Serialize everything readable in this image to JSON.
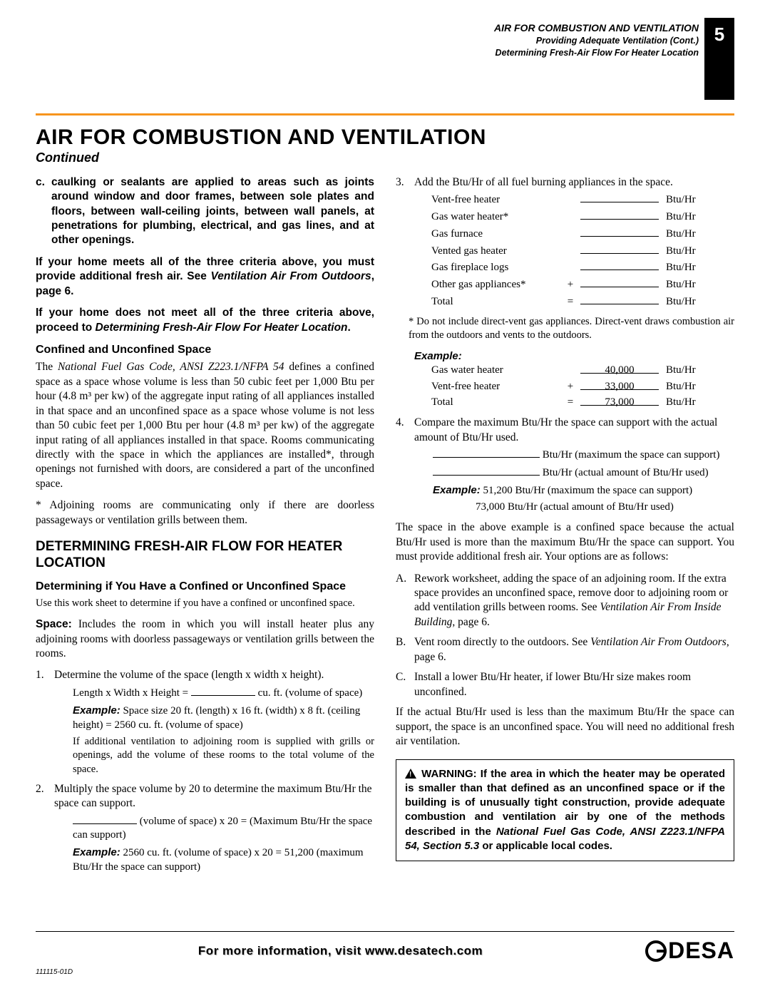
{
  "header": {
    "line1": "AIR FOR COMBUSTION AND VENTILATION",
    "line2": "Providing Adequate Ventilation (Cont.)",
    "line3": "Determining Fresh-Air Flow For Heater Location",
    "page_number": "5"
  },
  "title": "AIR FOR COMBUSTION AND VENTILATION",
  "continued": "Continued",
  "col1": {
    "item_c_marker": "c.",
    "item_c": "caulking or sealants are applied to areas such as joints around window and door frames, between sole plates and floors, between wall-ceiling joints, between wall panels, at penetrations for plumbing, electrical, and gas lines, and at other openings.",
    "p1_a": "If your home meets all of the three criteria above, you must provide additional fresh air. See ",
    "p1_b": "Ventilation Air From Outdoors",
    "p1_c": ", page 6.",
    "p2_a": "If your home does not meet all of the three criteria above, proceed to ",
    "p2_b": "Determining Fresh-Air Flow For Heater Location",
    "p2_c": ".",
    "h3_confined": "Confined and Unconfined Space",
    "confined_a": "The ",
    "confined_code": "National Fuel Gas Code, ANSI Z223.1/NFPA 54",
    "confined_b": " defines a confined space as a space whose volume is less than 50 cubic feet per 1,000 Btu per hour (4.8 m³ per kw) of the aggregate input rating of all appliances installed in that space and an unconfined space as a space whose volume is not less than 50 cubic feet per 1,000 Btu per hour (4.8 m³ per kw) of the aggregate input rating of all appliances installed in that space. Rooms communicating directly with the space in which the appliances are installed*, through openings not furnished with doors, are considered a part of the unconfined space.",
    "confined_note": "* Adjoining rooms are communicating only if there are doorless passageways or ventilation grills between them.",
    "h2_determining": "DETERMINING FRESH-AIR FLOW FOR HEATER LOCATION",
    "h3_determining_sub": "Determining if You Have a Confined or Unconfined Space",
    "worksheet_intro": "Use this work sheet to determine if you have a confined or unconfined space.",
    "space_label": "Space:",
    "space_def": " Includes the room in which you will install heater plus any adjoining rooms with doorless passageways or ventilation grills between the rooms.",
    "step1": "Determine the volume of the space (length x width x height).",
    "step1_formula": "Length x Width x Height = ",
    "step1_unit": " cu. ft. (volume of space)",
    "step1_ex": " Space size 20 ft. (length) x 16 ft. (width) x 8 ft. (ceiling height) = 2560 cu. ft. (volume of space)",
    "step1_note": "If additional ventilation to adjoining room is supplied with grills or openings, add the volume of these rooms to the total volume of the space.",
    "step2": "Multiply the space volume by 20 to determine the maximum Btu/Hr the space can support.",
    "step2_unit": " (volume of space) x 20 = (Maximum Btu/Hr the space can support)",
    "step2_ex": " 2560 cu. ft. (volume of space) x 20 = 51,200 (maximum Btu/Hr the space can support)"
  },
  "col2": {
    "step3": "Add the Btu/Hr of all fuel burning appliances in the space.",
    "appliances": [
      {
        "label": "Vent-free heater",
        "op": "",
        "value": "",
        "unit": "Btu/Hr"
      },
      {
        "label": "Gas water heater*",
        "op": "",
        "value": "",
        "unit": "Btu/Hr"
      },
      {
        "label": "Gas furnace",
        "op": "",
        "value": "",
        "unit": "Btu/Hr"
      },
      {
        "label": "Vented gas heater",
        "op": "",
        "value": "",
        "unit": "Btu/Hr"
      },
      {
        "label": "Gas fireplace logs",
        "op": "",
        "value": "",
        "unit": "Btu/Hr"
      },
      {
        "label": "Other gas appliances*",
        "op": "+",
        "value": "",
        "unit": "Btu/Hr"
      },
      {
        "label": "Total",
        "op": "=",
        "value": "",
        "unit": "Btu/Hr"
      }
    ],
    "direct_vent_note": "* Do not include direct-vent gas appliances. Direct-vent draws combustion air from the outdoors and vents to the outdoors.",
    "example_label": "Example:",
    "example_rows": [
      {
        "label": "Gas water heater",
        "op": "",
        "value": "40,000",
        "unit": "Btu/Hr"
      },
      {
        "label": "Vent-free heater",
        "op": "+",
        "value": "33,000",
        "unit": "Btu/Hr"
      },
      {
        "label": "Total",
        "op": "=",
        "value": "73,000",
        "unit": "Btu/Hr"
      }
    ],
    "step4": "Compare the maximum Btu/Hr the space can support with the actual amount of Btu/Hr used.",
    "step4_line1": " Btu/Hr (maximum the space can support)",
    "step4_line2": " Btu/Hr (actual amount of Btu/Hr used)",
    "step4_ex1": " 51,200 Btu/Hr (maximum the space can support)",
    "step4_ex2": "73,000 Btu/Hr (actual amount of Btu/Hr used)",
    "confined_result": "The space in the above example is a confined space because the actual Btu/Hr used is more than the maximum Btu/Hr the space can support. You must provide additional fresh air. Your options are as follows:",
    "optA_a": "Rework worksheet, adding the space of an adjoining room. If the extra space provides an unconfined space, remove door to adjoining room or add ventilation grills between rooms. See ",
    "optA_i": "Ventilation Air From Inside Building",
    "optA_b": ", page 6.",
    "optB_a": "Vent room directly to the outdoors. See ",
    "optB_i": "Ventilation Air From Outdoors",
    "optB_b": ", page 6.",
    "optC": "Install a lower Btu/Hr heater, if lower Btu/Hr size makes room unconfined.",
    "unconfined_result": "If the actual Btu/Hr used is less than the maximum Btu/Hr the space can support, the space is an unconfined space. You will need no additional fresh air ventilation.",
    "warning_a": " WARNING: If the area in which the heater may be operated is smaller than that defined as an unconfined space or if the building is of unusually tight construction, provide adequate combustion and ventilation air by one of the methods described in the ",
    "warning_i": "National Fuel Gas Code, ANSI Z223.1/NFPA 54, Section 5.3",
    "warning_b": " or applicable local codes."
  },
  "footer": {
    "text": "For more information, visit www.desatech.com",
    "logo": "DESA",
    "doc_id": "111115-01D"
  },
  "labels": {
    "example": "Example:"
  }
}
